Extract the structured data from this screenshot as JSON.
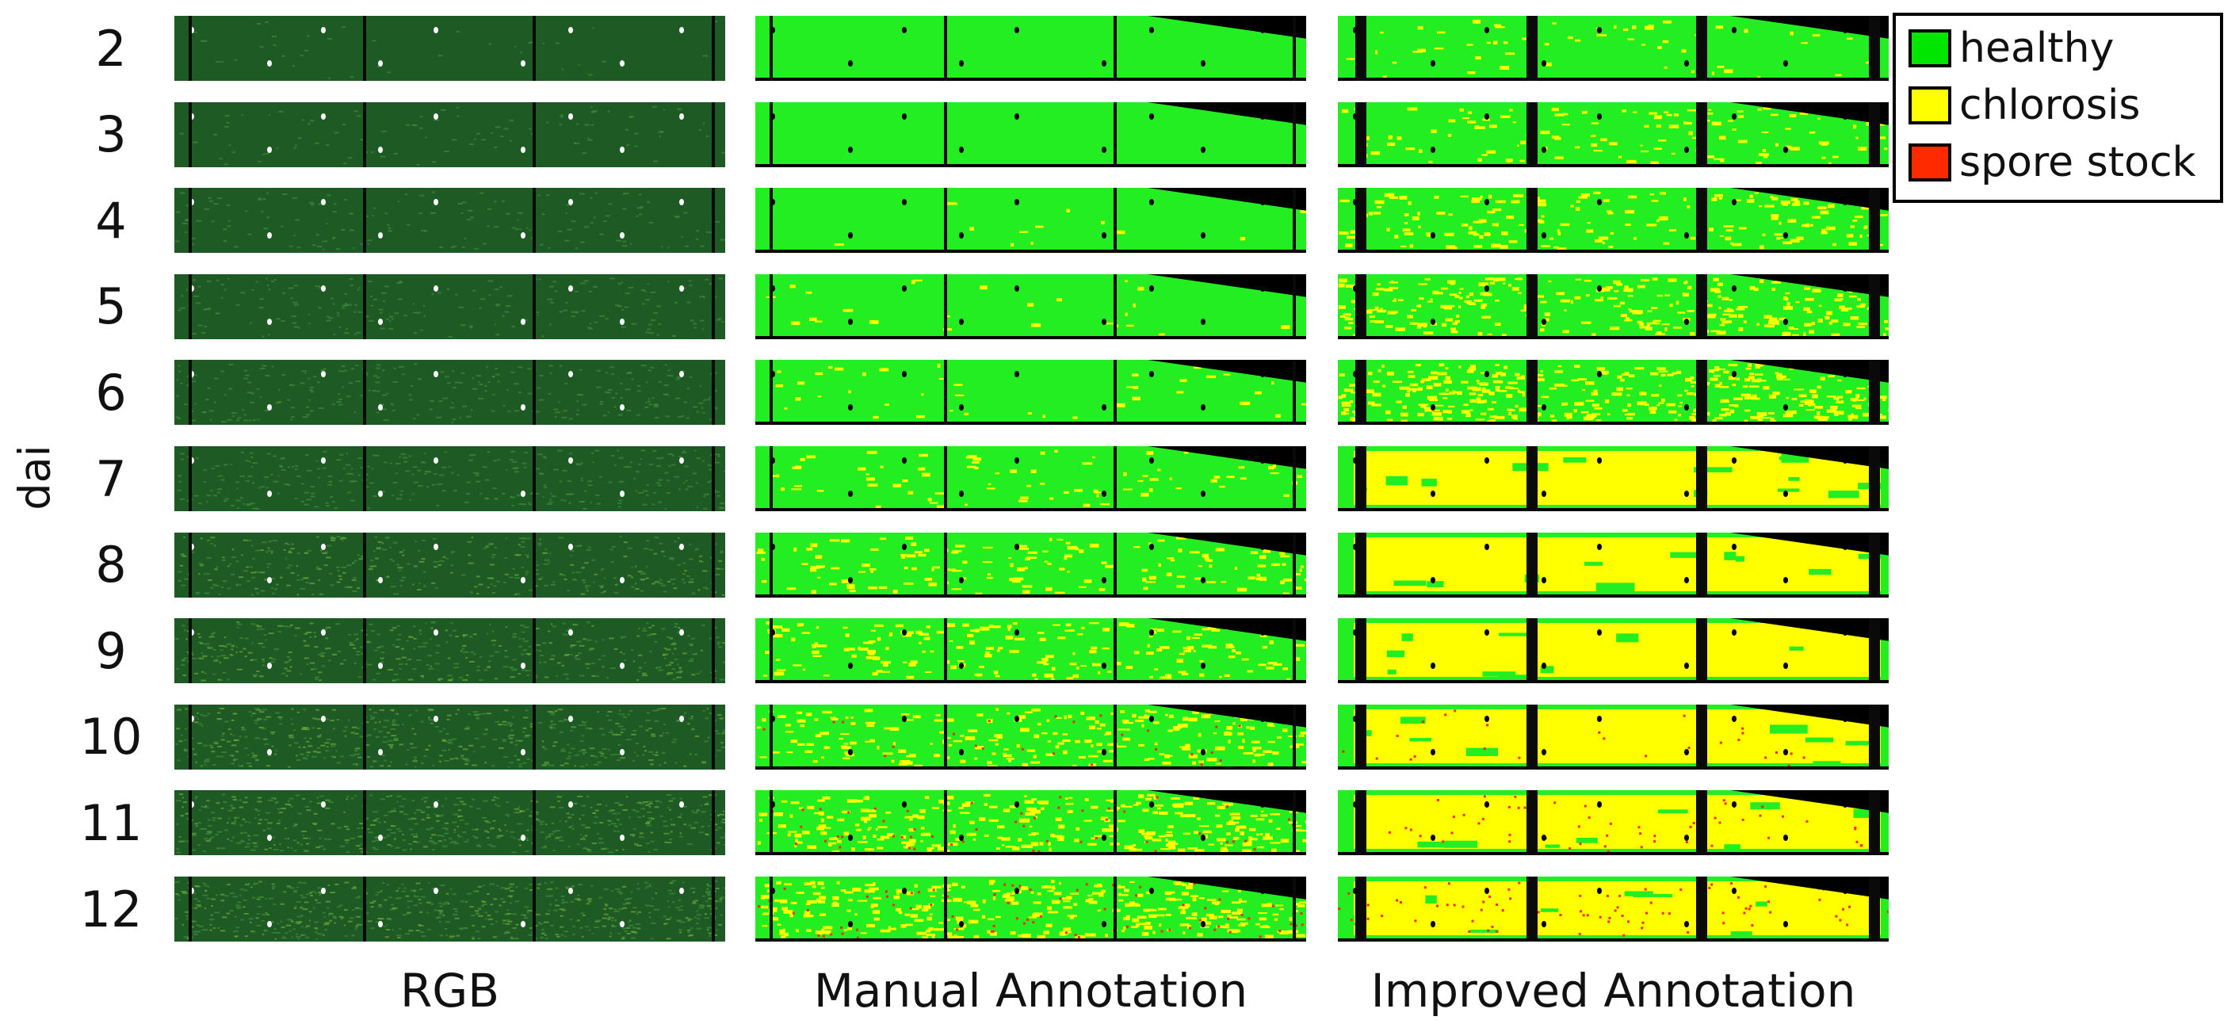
{
  "y_axis_label": "dai",
  "rows": [
    "2",
    "3",
    "4",
    "5",
    "6",
    "7",
    "8",
    "9",
    "10",
    "11",
    "12"
  ],
  "columns": [
    {
      "key": "rgb",
      "label": "RGB",
      "severity": [
        0,
        0,
        0,
        0,
        0,
        0,
        0,
        0,
        0,
        0,
        0
      ]
    },
    {
      "key": "manual",
      "label": "Manual Annotation",
      "severity": [
        0,
        0,
        0.02,
        0.04,
        0.06,
        0.12,
        0.22,
        0.28,
        0.34,
        0.42,
        0.48
      ]
    },
    {
      "key": "improved",
      "label": "Improved Annotation",
      "severity": [
        0.08,
        0.18,
        0.26,
        0.42,
        0.56,
        0.78,
        0.86,
        0.9,
        0.92,
        0.92,
        0.92
      ]
    }
  ],
  "legend": [
    {
      "label": "healthy",
      "color": "#00e600"
    },
    {
      "label": "chlorosis",
      "color": "#ffff00"
    },
    {
      "label": "spore stock",
      "color": "#ff2a00"
    }
  ],
  "colors": {
    "rgb_leaf": "#1e5a24",
    "healthy": "#22ee22",
    "chlorosis": "#ffff00",
    "spore": "#ff2a00",
    "separator": "#0a0a0a"
  }
}
